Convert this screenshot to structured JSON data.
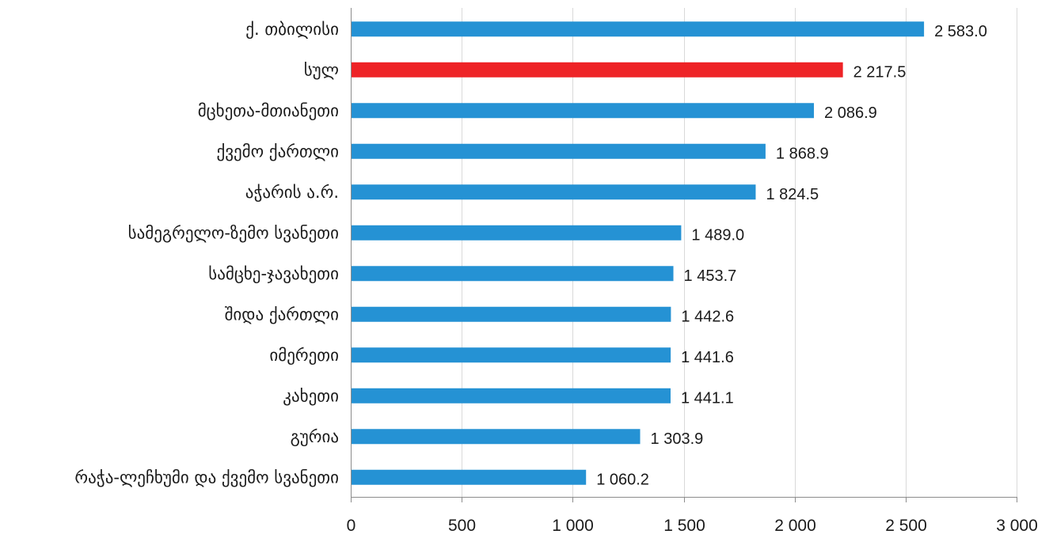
{
  "chart_data": {
    "type": "bar",
    "orientation": "horizontal",
    "categories": [
      "ქ. თბილისი",
      "სულ",
      "მცხეთა-მთიანეთი",
      "ქვემო ქართლი",
      "აჭარის ა.რ.",
      "სამეგრელო-ზემო სვანეთი",
      "სამცხე-ჯავახეთი",
      "შიდა ქართლი",
      "იმერეთი",
      "კახეთი",
      "გურია",
      "რაჭა-ლეჩხუმი და ქვემო სვანეთი"
    ],
    "values": [
      2583.0,
      2217.5,
      2086.9,
      1868.9,
      1824.5,
      1489.0,
      1453.7,
      1442.6,
      1441.6,
      1441.1,
      1303.9,
      1060.2
    ],
    "value_labels": [
      "2 583.0",
      "2 217.5",
      "2 086.9",
      "1 868.9",
      "1 824.5",
      "1 489.0",
      "1 453.7",
      "1 442.6",
      "1 441.6",
      "1 441.1",
      "1 303.9",
      "1 060.2"
    ],
    "highlight_index": 1,
    "colors": {
      "bar": "#2592d4",
      "highlight": "#ee2326"
    },
    "xlim": [
      0,
      3000
    ],
    "x_ticks": [
      0,
      500,
      1000,
      1500,
      2000,
      2500,
      3000
    ],
    "x_tick_labels": [
      "0",
      "500",
      "1 000",
      "1 500",
      "2 000",
      "2 500",
      "3 000"
    ],
    "grid": "vertical",
    "legend": "none",
    "title": "",
    "xlabel": "",
    "ylabel": ""
  }
}
